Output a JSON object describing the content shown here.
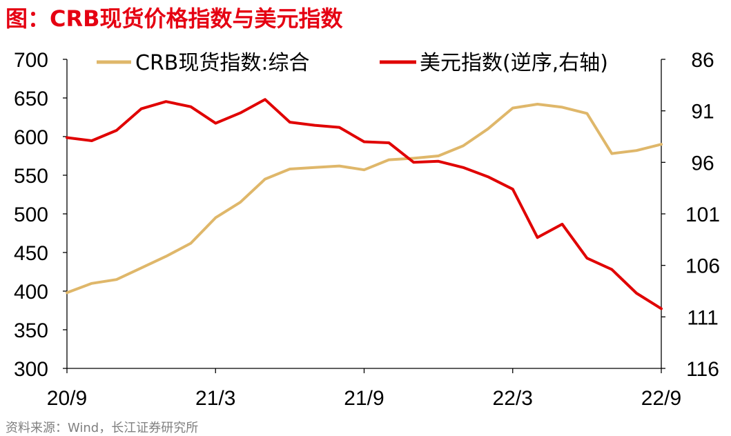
{
  "chart_data": {
    "type": "line",
    "title": "图：CRB现货价格指数与美元指数",
    "source": "资料来源：Wind，长江证券研究所",
    "x": [
      "20/9",
      "20/10",
      "20/11",
      "20/12",
      "21/1",
      "21/2",
      "21/3",
      "21/4",
      "21/5",
      "21/6",
      "21/7",
      "21/8",
      "21/9",
      "21/10",
      "21/11",
      "21/12",
      "22/1",
      "22/2",
      "22/3",
      "22/4",
      "22/5",
      "22/6",
      "22/7",
      "22/8",
      "22/9"
    ],
    "x_tick_labels": [
      "20/9",
      "21/3",
      "21/9",
      "22/3",
      "22/9"
    ],
    "left_axis": {
      "ylim": [
        300,
        700
      ],
      "ticks": [
        "300",
        "350",
        "400",
        "450",
        "500",
        "550",
        "600",
        "650",
        "700"
      ]
    },
    "right_axis": {
      "ylim": [
        116,
        86
      ],
      "reversed": true,
      "ticks": [
        "86",
        "91",
        "96",
        "101",
        "106",
        "111",
        "116"
      ]
    },
    "series": [
      {
        "name": "CRB现货指数:综合",
        "axis": "left",
        "color": "#dfb76a",
        "values": [
          398,
          410,
          415,
          430,
          445,
          462,
          495,
          515,
          545,
          558,
          560,
          562,
          557,
          570,
          572,
          575,
          588,
          610,
          637,
          642,
          638,
          630,
          578,
          582,
          590
        ]
      },
      {
        "name": "美元指数(逆序,右轴)",
        "axis": "right",
        "color": "#e00000",
        "values": [
          93.6,
          93.9,
          92.9,
          90.8,
          90.1,
          90.6,
          92.2,
          91.2,
          89.9,
          92.1,
          92.4,
          92.6,
          94.0,
          94.1,
          96.0,
          95.9,
          96.5,
          97.4,
          98.6,
          103.3,
          102.0,
          105.3,
          106.4,
          108.7,
          110.2
        ]
      }
    ]
  }
}
